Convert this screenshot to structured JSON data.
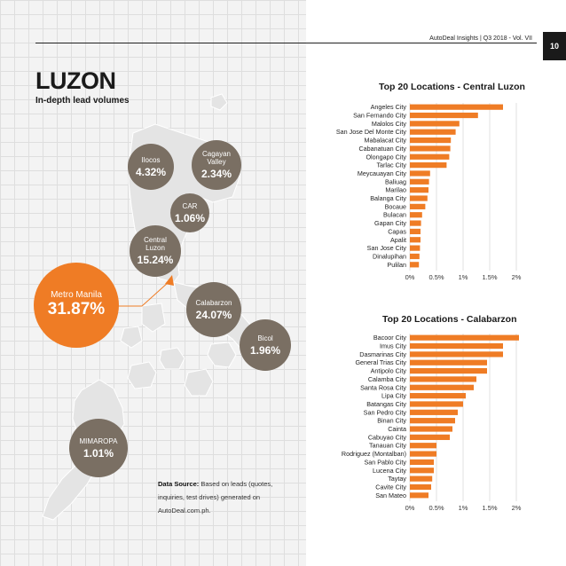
{
  "header": {
    "text": "AutoDeal Insights | Q3 2018 - Vol. VII",
    "page_number": "10"
  },
  "title": "LUZON",
  "subtitle": "In-depth lead volumes",
  "colors": {
    "accent": "#ef7c25",
    "region": "#7a6f63",
    "map_land": "#e4e4e4"
  },
  "regions": [
    {
      "name": "Ilocos",
      "value": "4.32%"
    },
    {
      "name": "Cagayan Valley",
      "value": "2.34%"
    },
    {
      "name": "CAR",
      "value": "1.06%"
    },
    {
      "name": "Central Luzon",
      "value": "15.24%"
    },
    {
      "name": "Metro Manila",
      "value": "31.87%"
    },
    {
      "name": "Calabarzon",
      "value": "24.07%"
    },
    {
      "name": "Bicol",
      "value": "1.96%"
    },
    {
      "name": "MIMAROPA",
      "value": "1.01%"
    }
  ],
  "source": {
    "label": "Data Source:",
    "text": "Based on leads (quotes, inquiries, test drives) generated on AutoDeal.com.ph."
  },
  "chart_data": [
    {
      "type": "bar",
      "orientation": "horizontal",
      "title": "Top 20 Locations - Central Luzon",
      "categories": [
        "Angeles City",
        "San Fernando City",
        "Malolos City",
        "San Jose Del Monte City",
        "Mabalacat City",
        "Cabanatuan City",
        "Olongapo City",
        "Tarlac City",
        "Meycauayan City",
        "Baliuag",
        "Marilao",
        "Balanga City",
        "Bocaue",
        "Bulacan",
        "Gapan City",
        "Capas",
        "Apalit",
        "San Jose City",
        "Dinalupihan",
        "Pulilan"
      ],
      "values": [
        1.75,
        1.28,
        0.93,
        0.86,
        0.77,
        0.76,
        0.74,
        0.69,
        0.38,
        0.36,
        0.35,
        0.33,
        0.29,
        0.23,
        0.21,
        0.2,
        0.2,
        0.19,
        0.18,
        0.17
      ],
      "xlim": [
        0,
        2
      ],
      "xticks": [
        "0%",
        "0.5%",
        "1%",
        "1.5%",
        "2%"
      ],
      "grid": true
    },
    {
      "type": "bar",
      "orientation": "horizontal",
      "title": "Top 20 Locations - Calabarzon",
      "categories": [
        "Bacoor City",
        "Imus City",
        "Dasmarinas City",
        "General Trias City",
        "Antipolo City",
        "Calamba City",
        "Santa Rosa City",
        "Lipa City",
        "Batangas City",
        "San Pedro City",
        "Binan City",
        "Cainta",
        "Cabuyao City",
        "Tanauan City",
        "Rodriguez (Montalban)",
        "San Pablo City",
        "Lucena City",
        "Taytay",
        "Cavite City",
        "San Mateo"
      ],
      "values": [
        2.05,
        1.75,
        1.75,
        1.45,
        1.45,
        1.25,
        1.2,
        1.05,
        1.0,
        0.9,
        0.85,
        0.8,
        0.75,
        0.5,
        0.5,
        0.45,
        0.45,
        0.42,
        0.4,
        0.35
      ],
      "xlim": [
        0,
        2
      ],
      "xticks": [
        "0%",
        "0.5%",
        "1%",
        "1.5%",
        "2%"
      ],
      "grid": true
    }
  ]
}
